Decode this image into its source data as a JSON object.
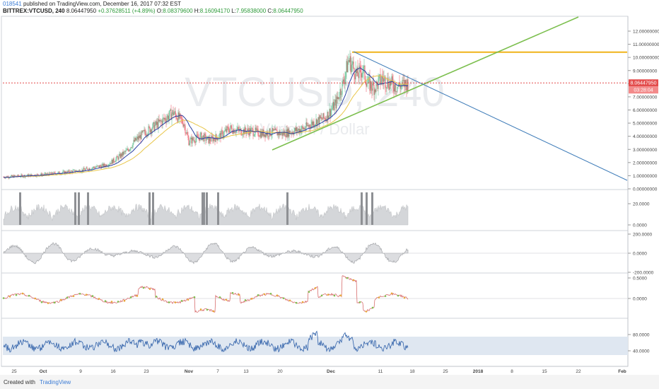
{
  "header": {
    "user": "018541",
    "published": "published on TradingView.com, December 16, 2017 07:32 EST",
    "symbol": "BITTREX:VTCUSD, 240",
    "price": "8.06447950",
    "change": "+0.37628511 (+4.89%)",
    "o_label": "O:",
    "o_val": "8.08379600",
    "h_label": "H:",
    "h_val": "8.16094170",
    "l_label": "L:",
    "l_val": "7.95838000",
    "c_label": "C:",
    "c_val": "8.06447950"
  },
  "watermark": {
    "main": "VTCUSD, 240",
    "sub": "Vertcoin / Dollar"
  },
  "footer": {
    "created": "Created with",
    "brand": "TradingView"
  },
  "colors": {
    "up": "#53b987",
    "down": "#eb4d5c",
    "ma_blue": "#2b3fa0",
    "ma_yellow": "#e8c64a",
    "resistance": "#f0b31a",
    "support": "#7cbf4e",
    "downtrend": "#3d7bb8",
    "price_line": "#e34c4c",
    "rsi_band": "#dfe7f1",
    "rsi_line": "#2c5ea8"
  },
  "chart_data": [
    {
      "type": "candlestick",
      "panel": "price",
      "x_ticks": [
        "25",
        "Oct",
        "9",
        "16",
        "23",
        "Nov",
        "7",
        "13",
        "20",
        "Dec",
        "11",
        "18",
        "25",
        "2018",
        "8",
        "15",
        "22",
        "Feb"
      ],
      "y_ticks": [
        "12.00000000",
        "11.00000000",
        "10.00000000",
        "9.00000000",
        "8.00000000",
        "7.00000000",
        "6.00000000",
        "5.00000000",
        "4.00000000",
        "3.00000000",
        "2.00000000",
        "1.00000000",
        "0.00000000"
      ],
      "ylim": [
        0,
        12.7
      ],
      "last_price_label": "8.06447950",
      "countdown_label": "03:28:04",
      "close_path_index": [
        0,
        30,
        60,
        85,
        110,
        125,
        145,
        160,
        175,
        185,
        200,
        220,
        240,
        255,
        262,
        275,
        280,
        290,
        305,
        320,
        335,
        350,
        365,
        380,
        395,
        410,
        425,
        440,
        455,
        470,
        480,
        488,
        495,
        500,
        508,
        515,
        525,
        535,
        545,
        555,
        565,
        572
      ],
      "close_path_value": [
        0.9,
        1.0,
        1.1,
        1.25,
        1.4,
        1.6,
        1.8,
        2.3,
        2.9,
        3.6,
        4.3,
        5.0,
        5.8,
        5.0,
        3.6,
        3.9,
        4.0,
        3.7,
        4.0,
        4.6,
        4.4,
        4.4,
        4.2,
        4.3,
        4.2,
        4.4,
        4.6,
        5.1,
        5.4,
        6.5,
        8.0,
        9.8,
        9.2,
        8.6,
        9.1,
        8.0,
        7.7,
        8.4,
        8.1,
        7.8,
        7.9,
        8.06
      ],
      "annotations": [
        {
          "name": "resistance",
          "price": 10.4
        },
        {
          "name": "current-price",
          "price": 8.06
        }
      ]
    },
    {
      "type": "area",
      "panel": "volume",
      "y_ticks": [
        "20.0000",
        "0.0000"
      ]
    },
    {
      "type": "area",
      "panel": "oscillator",
      "y_ticks": [
        "200.0000",
        "0.0000",
        "-200.0000"
      ]
    },
    {
      "type": "line",
      "panel": "momentum",
      "y_ticks": [
        "0.5000",
        "0.0000"
      ]
    },
    {
      "type": "line",
      "panel": "rsi",
      "y_ticks": [
        "80.0000",
        "40.0000"
      ],
      "band": [
        30,
        80
      ]
    }
  ]
}
